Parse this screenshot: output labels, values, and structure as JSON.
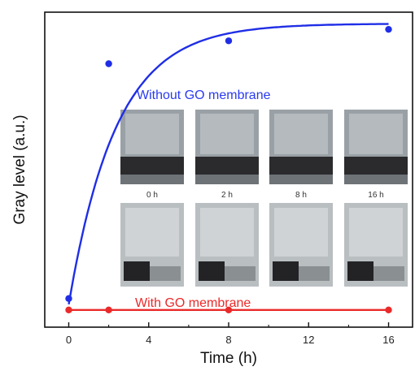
{
  "chart_data": {
    "type": "scatter",
    "xlabel": "Time (h)",
    "ylabel": "Gray level (a.u.)",
    "xlim": [
      -1.2,
      17.2
    ],
    "ylim": [
      0,
      1.1
    ],
    "xticks": [
      0,
      4,
      8,
      12,
      16
    ],
    "yticks_shown": false,
    "grid": false,
    "series": [
      {
        "name": "Without GO membrane",
        "color": "#1f2ee6",
        "x": [
          0,
          2,
          8,
          16
        ],
        "y": [
          0.1,
          0.92,
          1.0,
          1.04
        ],
        "fit": "exponential saturation curve"
      },
      {
        "name": "With GO membrane",
        "color": "#ea2a2a",
        "x": [
          0,
          2,
          8,
          16
        ],
        "y": [
          0.06,
          0.06,
          0.06,
          0.06
        ],
        "fit": "flat line"
      }
    ],
    "inset": {
      "labels": [
        "0 h",
        "2 h",
        "8 h",
        "16 h"
      ]
    }
  }
}
